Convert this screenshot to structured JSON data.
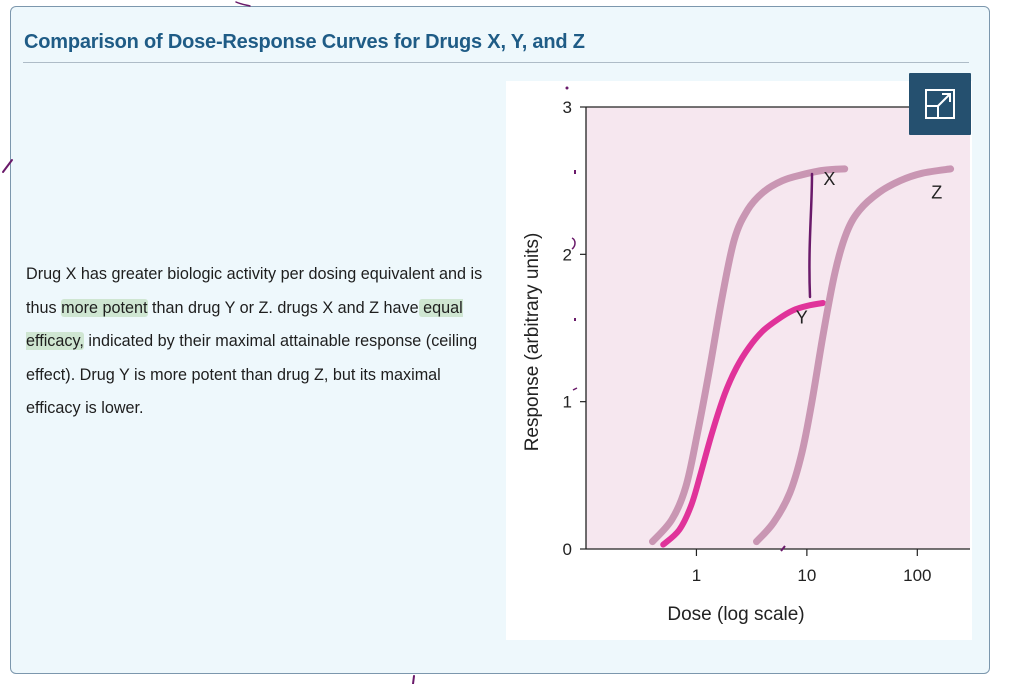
{
  "card": {
    "title": "Comparison of Dose-Response Curves for Drugs X, Y, and Z"
  },
  "description": {
    "part1": "Drug X has greater biologic activity per dosing equivalent and is thus ",
    "highlight1": "more potent",
    "part2": " than drug Y or Z. drugs X and Z have",
    "highlight2": " equal efficacy,",
    "part3": " indicated by their maximal attainable response (ceiling effect). Drug Y is more potent than drug Z, but its maximal efficacy is lower."
  },
  "expand_button": {
    "icon": "expand-icon"
  },
  "colors": {
    "card_bg": "#eef8fc",
    "card_border": "#7c97ad",
    "title": "#1f5c86",
    "plot_bg": "#f6e7ef",
    "curve_xz": "#c996b3",
    "curve_y": "#e0339a",
    "highlight": "#cfe6d2",
    "annotation": "#6a1a6a"
  },
  "chart_data": {
    "type": "line",
    "title": "",
    "xlabel": "Dose (log scale)",
    "ylabel": "Response (arbitrary units)",
    "x_scale": "log",
    "xlim": [
      0.1,
      300
    ],
    "ylim": [
      0,
      3
    ],
    "x_ticks": [
      1,
      10,
      100
    ],
    "x_tick_labels": [
      "1",
      "10",
      "100"
    ],
    "y_ticks": [
      0,
      1,
      2,
      3
    ],
    "y_tick_labels": [
      "0",
      "1",
      "2",
      "3"
    ],
    "grid": false,
    "series": [
      {
        "name": "X",
        "x": [
          0.4,
          0.6,
          0.8,
          1.0,
          1.3,
          1.7,
          2.2,
          2.9,
          4.0,
          6.0,
          9.0,
          14.0,
          22.0
        ],
        "y": [
          0.05,
          0.2,
          0.42,
          0.75,
          1.2,
          1.7,
          2.1,
          2.3,
          2.42,
          2.5,
          2.54,
          2.57,
          2.58
        ]
      },
      {
        "name": "Y",
        "x": [
          0.5,
          0.7,
          0.9,
          1.1,
          1.4,
          1.8,
          2.3,
          3.0,
          4.0,
          5.5,
          7.5,
          10.0,
          14.0
        ],
        "y": [
          0.03,
          0.13,
          0.3,
          0.52,
          0.8,
          1.05,
          1.23,
          1.37,
          1.48,
          1.56,
          1.62,
          1.65,
          1.67
        ]
      },
      {
        "name": "Z",
        "x": [
          3.5,
          5.0,
          7.0,
          9.0,
          11.0,
          14.0,
          18.0,
          23.0,
          30.0,
          45.0,
          70.0,
          110.0,
          200.0
        ],
        "y": [
          0.05,
          0.18,
          0.38,
          0.65,
          0.98,
          1.45,
          1.88,
          2.15,
          2.3,
          2.42,
          2.5,
          2.55,
          2.58
        ]
      }
    ],
    "curve_labels": [
      {
        "text": "X",
        "x": 16,
        "y": 2.47
      },
      {
        "text": "Y",
        "x": 9,
        "y": 1.53
      },
      {
        "text": "Z",
        "x": 150,
        "y": 2.38
      }
    ]
  }
}
